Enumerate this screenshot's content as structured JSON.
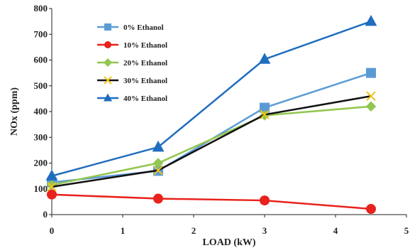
{
  "chart_data": {
    "type": "line",
    "xlabel": "LOAD (kW)",
    "ylabel": "NOx (ppm)",
    "xlim": [
      0,
      5
    ],
    "ylim": [
      0,
      800
    ],
    "xticks": [
      0,
      1,
      2,
      3,
      4,
      5
    ],
    "yticks": [
      0,
      100,
      200,
      300,
      400,
      500,
      600,
      700,
      800
    ],
    "grid": false,
    "legend_position": "top-left",
    "series": [
      {
        "name": "0% Ethanol",
        "color": "#5b9bd5",
        "marker": "square",
        "x": [
          0,
          1.5,
          3,
          4.5
        ],
        "values": [
          125,
          170,
          415,
          550
        ]
      },
      {
        "name": "10% Ethanol",
        "color": "#e8221c",
        "marker": "circle",
        "x": [
          0,
          1.5,
          3,
          4.5
        ],
        "values": [
          78,
          62,
          55,
          22
        ]
      },
      {
        "name": "20% Ethanol",
        "color": "#92c64f",
        "marker": "diamond",
        "x": [
          0,
          1.5,
          3,
          4.5
        ],
        "values": [
          115,
          200,
          385,
          420
        ]
      },
      {
        "name": "30% Ethanol",
        "color": "#111111",
        "marker": "x",
        "x": [
          0,
          1.5,
          3,
          4.5
        ],
        "values": [
          108,
          172,
          388,
          460
        ]
      },
      {
        "name": "40% Ethanol",
        "color": "#1f6dbf",
        "marker": "triangle",
        "x": [
          0,
          1.5,
          3,
          4.5
        ],
        "values": [
          150,
          262,
          603,
          750
        ]
      }
    ]
  }
}
